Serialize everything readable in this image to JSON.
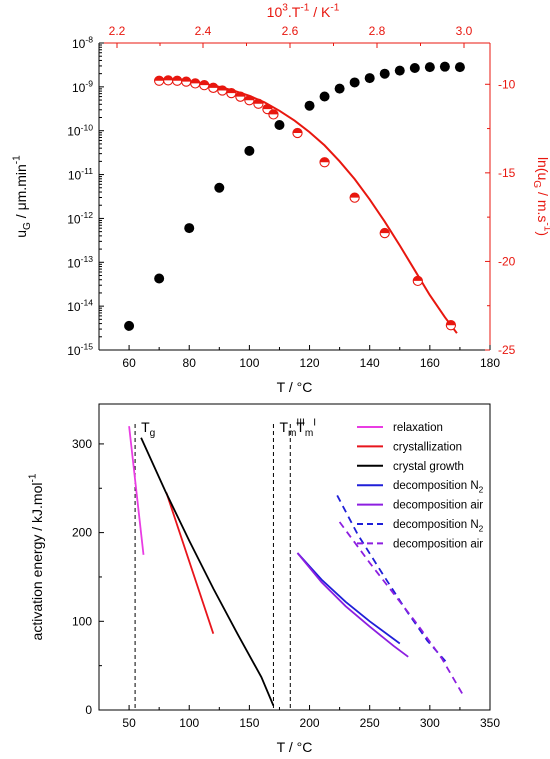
{
  "colors": {
    "black": "#000000",
    "red": "#e8170f",
    "magenta": "#e93ce3",
    "crystallization": "#e8151c",
    "blue": "#1f1fd8",
    "purple": "#8d1fe0"
  },
  "chart_data": [
    {
      "type": "scatter",
      "id": "top-panel",
      "xlabel": {
        "main": "T",
        "unit": "°C"
      },
      "x_ticks": [
        "60",
        "80",
        "100",
        "120",
        "140",
        "160",
        "180"
      ],
      "xlim": [
        50,
        180
      ],
      "ylabel_left": {
        "u": "u",
        "sub": "G",
        "unit": "μm.min",
        "sup": "-1"
      },
      "ylim_left_exp": [
        -15,
        -8
      ],
      "yticks_left": [
        {
          "base": "10",
          "exp": "-8"
        },
        {
          "base": "10",
          "exp": "-9"
        },
        {
          "base": "10",
          "exp": "-10"
        },
        {
          "base": "10",
          "exp": "-11"
        },
        {
          "base": "10",
          "exp": "-12"
        },
        {
          "base": "10",
          "exp": "-13"
        },
        {
          "base": "10",
          "exp": "-14"
        },
        {
          "base": "10",
          "exp": "-15"
        }
      ],
      "x2label": {
        "p1": "10",
        "sup1": "3",
        "p2": ".T",
        "sup2": "-1",
        "unit": "K",
        "sup3": "-1"
      },
      "x2_ticks": [
        "2.2",
        "2.4",
        "2.6",
        "2.8",
        "3.0"
      ],
      "y2label": {
        "p1": "ln(u",
        "sub": "G",
        "p2": " / m.s",
        "sup": "-1",
        "p3": ")"
      },
      "y2_ticks": [
        "-10",
        "-15",
        "-20",
        "-25"
      ],
      "ylim_right": [
        -25,
        -7.67
      ],
      "series": [
        {
          "marker": "filled-circle",
          "color": "#000000",
          "axis": "left",
          "x": [
            60,
            70,
            80,
            90,
            100,
            110,
            120,
            125,
            130,
            135,
            140,
            145,
            150,
            155,
            160,
            165,
            170
          ],
          "log10_y": [
            -14.45,
            -13.37,
            -12.22,
            -11.3,
            -10.46,
            -9.87,
            -9.43,
            -9.22,
            -9.04,
            -8.9,
            -8.8,
            -8.7,
            -8.63,
            -8.57,
            -8.55,
            -8.54,
            -8.55
          ]
        },
        {
          "marker": "half-filled-circle",
          "color": "#e8170f",
          "axis": "right",
          "x": [
            70,
            73,
            76,
            79,
            82,
            85,
            88,
            91,
            94,
            97,
            100,
            103,
            106,
            108,
            116,
            125,
            135,
            145,
            156,
            167
          ],
          "y": [
            -9.8,
            -9.78,
            -9.8,
            -9.85,
            -9.95,
            -10.05,
            -10.2,
            -10.35,
            -10.5,
            -10.7,
            -10.9,
            -11.1,
            -11.4,
            -11.7,
            -12.75,
            -14.4,
            -16.4,
            -18.4,
            -21.1,
            -23.6
          ]
        }
      ],
      "fit_line": {
        "color": "#e8170f",
        "x": [
          69,
          75,
          80,
          85,
          90,
          95,
          100,
          105,
          110,
          115,
          120,
          125,
          130,
          135,
          140,
          145,
          150,
          155,
          160,
          165,
          169
        ],
        "y": [
          -9.75,
          -9.76,
          -9.83,
          -9.97,
          -10.14,
          -10.37,
          -10.65,
          -11.02,
          -11.5,
          -12.05,
          -12.7,
          -13.45,
          -14.35,
          -15.35,
          -16.5,
          -17.75,
          -19.1,
          -20.5,
          -21.9,
          -23.15,
          -24.05
        ]
      }
    },
    {
      "type": "line",
      "id": "bottom-panel",
      "xlabel": {
        "main": "T",
        "unit": "°C"
      },
      "x_ticks": [
        "50",
        "100",
        "150",
        "200",
        "250",
        "300",
        "350"
      ],
      "xlim": [
        25,
        350
      ],
      "ylabel": {
        "main": "activation energy",
        "unit": "kJ.mol",
        "sup": "-1"
      },
      "y_ticks": [
        "0",
        "100",
        "200",
        "300"
      ],
      "ylim": [
        0,
        345
      ],
      "vlines": [
        {
          "x": 55,
          "label": "T",
          "sub": "g",
          "sup": ""
        },
        {
          "x": 170,
          "label": "T",
          "sub": "m",
          "sup": "III"
        },
        {
          "x": 184,
          "label": "T",
          "sub": "m",
          "sup": "I"
        }
      ],
      "series": [
        {
          "name": "relaxation",
          "sub": "",
          "color": "#e93ce3",
          "dash": false,
          "x": [
            50,
            62
          ],
          "y": [
            320,
            175
          ]
        },
        {
          "name": "crystallization",
          "sub": "",
          "color": "#e8151c",
          "dash": false,
          "x": [
            81,
            120
          ],
          "y": [
            245,
            86
          ]
        },
        {
          "name": "crystal growth",
          "sub": "",
          "color": "#000000",
          "dash": false,
          "x": [
            60,
            80,
            100,
            120,
            140,
            160,
            170
          ],
          "y": [
            307,
            247,
            191,
            137,
            86,
            37,
            5
          ]
        },
        {
          "name": "decomposition N",
          "sub": "2",
          "color": "#1f1fd8",
          "dash": false,
          "x": [
            190,
            210,
            230,
            250,
            275
          ],
          "y": [
            177,
            147,
            122,
            100,
            75
          ]
        },
        {
          "name": "decomposition air",
          "sub": "",
          "color": "#8d1fe0",
          "dash": false,
          "x": [
            190,
            210,
            230,
            250,
            270,
            282
          ],
          "y": [
            177,
            144,
            117,
            94,
            72,
            60
          ]
        },
        {
          "name": "decomposition N",
          "sub": "2",
          "color": "#1f1fd8",
          "dash": true,
          "x": [
            223,
            240,
            260,
            280,
            298,
            313
          ],
          "y": [
            242,
            198,
            155,
            113,
            78,
            55
          ]
        },
        {
          "name": "decomposition air",
          "sub": "",
          "color": "#8d1fe0",
          "dash": true,
          "x": [
            225,
            250,
            270,
            290,
            310,
            328
          ],
          "y": [
            212,
            166,
            131,
            96,
            58,
            16
          ]
        }
      ]
    }
  ]
}
